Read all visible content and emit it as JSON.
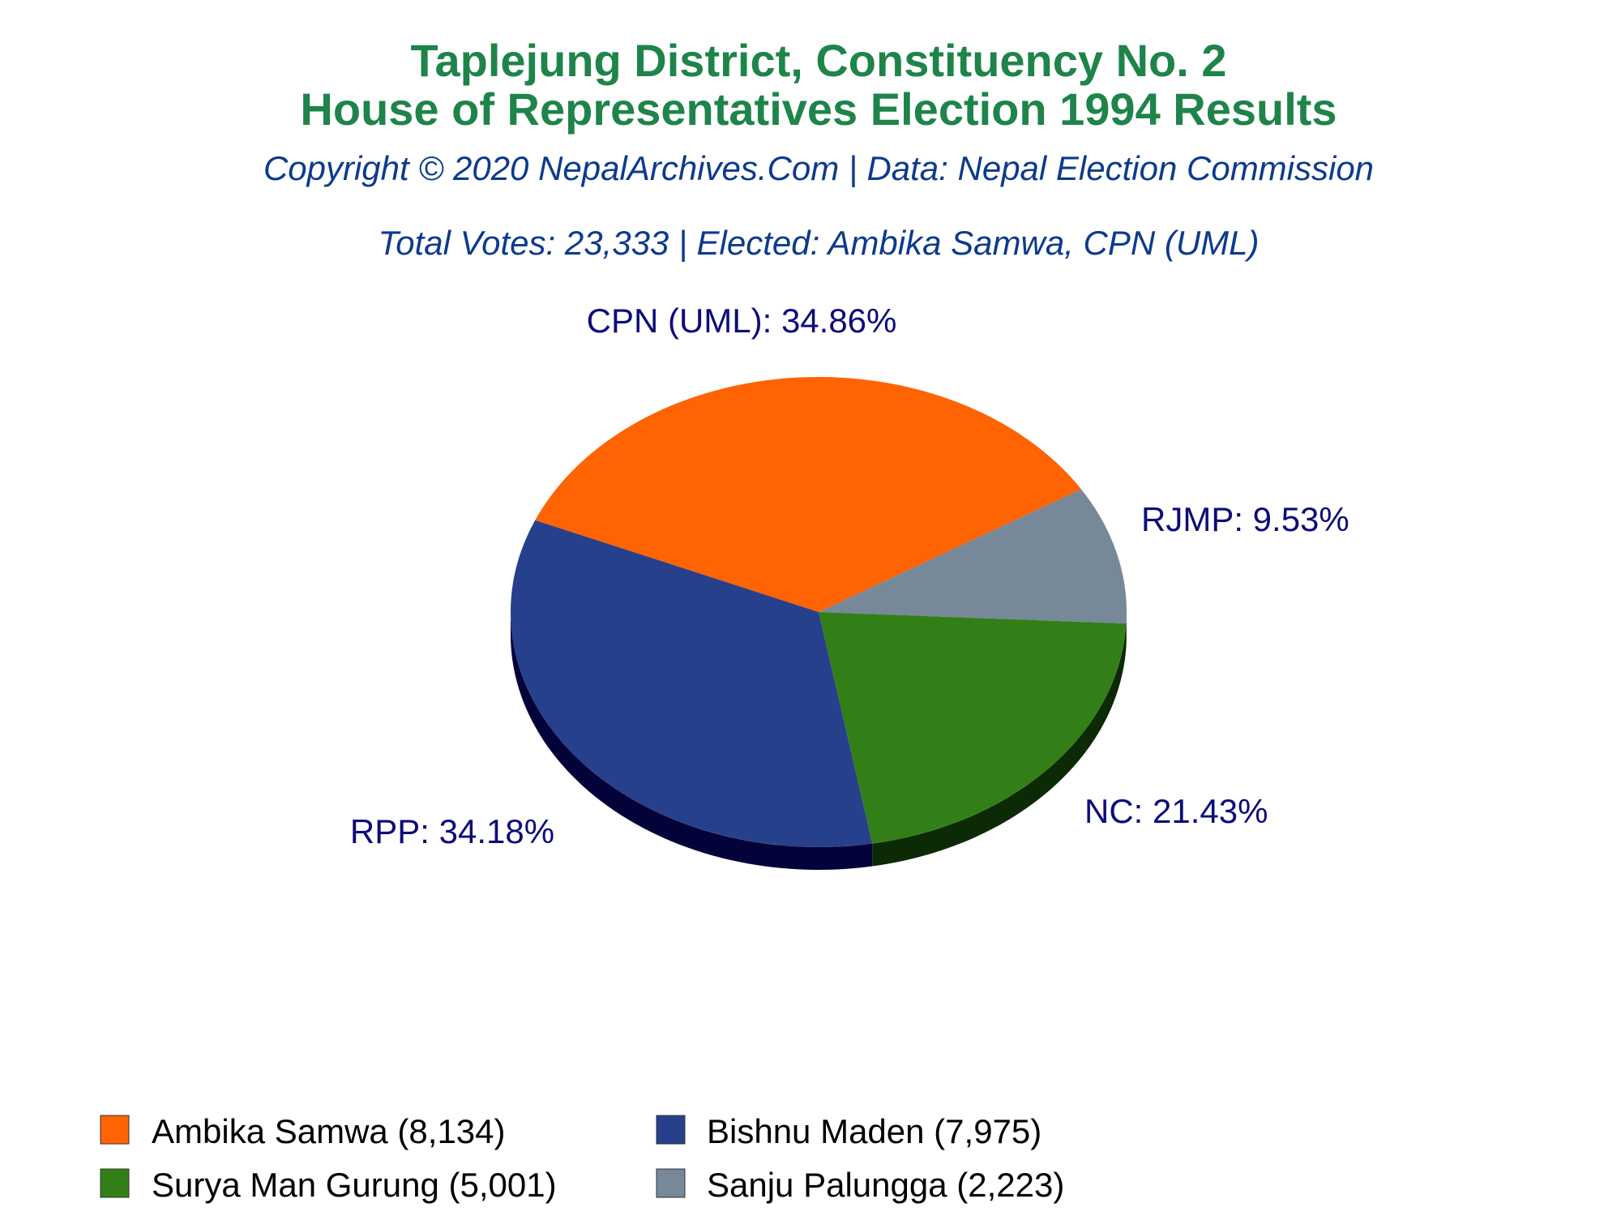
{
  "colors": {
    "title": "#1e844a",
    "subtitle": "#0d3a8c",
    "slice_label": "#0c0c7a"
  },
  "chart_data": {
    "type": "pie",
    "title": "Taplejung District, Constituency No. 2",
    "title_line2": "House of Representatives Election 1994 Results",
    "subtitle": "Copyright © 2020 NepalArchives.Com | Data: Nepal Election Commission",
    "summary": "Total Votes: 23,333 | Elected: Ambika Samwa, CPN (UML)",
    "total_votes": 23333,
    "legend_placement": "bottom",
    "slices": [
      {
        "party": "CPN (UML)",
        "candidate": "Ambika Samwa",
        "votes": 8134,
        "percent": 34.86,
        "color": "#ff6302",
        "dark_color": "#8c3600",
        "label": "CPN (UML): 34.86%",
        "legend": "Ambika Samwa (8,134)"
      },
      {
        "party": "RJMP",
        "candidate": "Sanju Palungga",
        "votes": 2223,
        "percent": 9.53,
        "color": "#778899",
        "dark_color": "#3b4450",
        "label": "RJMP: 9.53%",
        "legend": "Sanju Palungga (2,223)"
      },
      {
        "party": "NC",
        "candidate": "Surya Man Gurung",
        "votes": 5001,
        "percent": 21.43,
        "color": "#337f17",
        "dark_color": "#0b2a05",
        "label": "NC: 21.43%",
        "legend": "Surya Man Gurung (5,001)"
      },
      {
        "party": "RPP",
        "candidate": "Bishnu Maden",
        "votes": 7975,
        "percent": 34.18,
        "color": "#27408b",
        "dark_color": "#03033a",
        "label": "RPP: 34.18%",
        "legend": "Bishnu Maden (7,975)"
      }
    ],
    "legend_order": [
      "Ambika Samwa (8,134)",
      "Bishnu Maden (7,975)",
      "Surya Man Gurung (5,001)",
      "Sanju Palungga (2,223)"
    ]
  }
}
